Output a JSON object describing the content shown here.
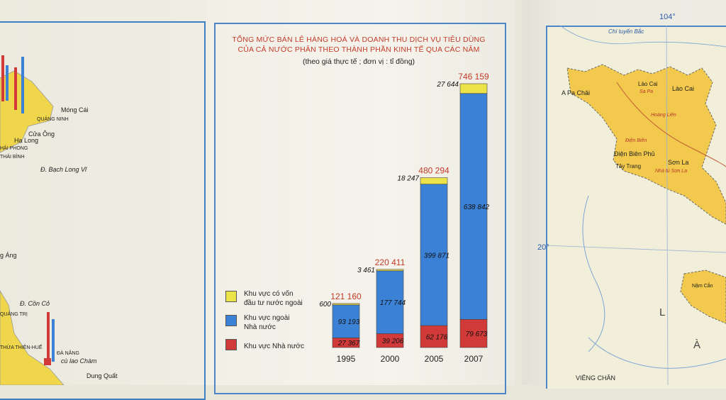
{
  "chart_data": {
    "type": "bar",
    "stacked": true,
    "title_lines": [
      "TỔNG MỨC BÁN LẺ HÀNG HOÁ VÀ DOANH THU DỊCH VỤ TIÊU DÙNG",
      "CỦA CẢ NƯỚC PHÂN THEO THÀNH PHẦN KINH TẾ QUA CÁC NĂM"
    ],
    "subtitle": "(theo giá thực tế ; đơn vị : tỉ đồng)",
    "categories": [
      "1995",
      "2000",
      "2005",
      "2007"
    ],
    "series": [
      {
        "name": "Khu vực Nhà nước",
        "color": "#d23a3a",
        "values": [
          27367,
          39206,
          62176,
          79673
        ],
        "labels": [
          "27 367",
          "39 206",
          "62 176",
          "79 673"
        ]
      },
      {
        "name": "Khu vực ngoài Nhà nước",
        "color": "#3b82d6",
        "values": [
          93193,
          177744,
          399871,
          638842
        ],
        "labels": [
          "93 193",
          "177 744",
          "399 871",
          "638 842"
        ]
      },
      {
        "name": "Khu vực có vốn đầu tư nước ngoài",
        "color": "#ece24a",
        "values": [
          600,
          3461,
          18247,
          27644
        ],
        "labels": [
          "600",
          "3 461",
          "18 247",
          "27 644"
        ]
      }
    ],
    "totals": [
      121160,
      220411,
      480294,
      746159
    ],
    "total_labels": [
      "121 160",
      "220 411",
      "480 294",
      "746 159"
    ],
    "ylim": [
      0,
      746159
    ],
    "grid": false,
    "legend_position": "bottom-left"
  },
  "legend": [
    {
      "line1": "Khu vực có vốn",
      "line2": "đầu tư nước ngoài",
      "color": "#ece24a"
    },
    {
      "line1": "Khu vực ngoài",
      "line2": "Nhà nước",
      "color": "#3b82d6"
    },
    {
      "line1": "Khu vực Nhà nước",
      "line2": "",
      "color": "#d23a3a"
    }
  ],
  "left_map": {
    "labels": [
      "Móng Cái",
      "QUẢNG NINH",
      "Cửa Ông",
      "Hạ Long",
      "HẢI PHÒNG",
      "THÁI BÌNH",
      "Đ. Bạch Long Vĩ",
      "g Áng",
      "Đ. Cồn Cỏ",
      "QUẢNG TRỊ",
      "THỪA THIÊN-HUẾ",
      "ĐÀ NẴNG",
      "cù lao Chàm",
      "Dung Quất"
    ]
  },
  "right_map": {
    "labels": [
      "104°",
      "Chí tuyến Bắc",
      "Lào Cai",
      "Lào Cai",
      "A Pa Chải",
      "Sa Pa",
      "Hoàng Liên",
      "Điện Biên",
      "Điện Biên Phủ",
      "Sơn La",
      "Tây Trang",
      "Nhà tù Sơn La",
      "20°",
      "Nậm Cắn",
      "L",
      "À",
      "VIÊNG CHĂN"
    ]
  }
}
